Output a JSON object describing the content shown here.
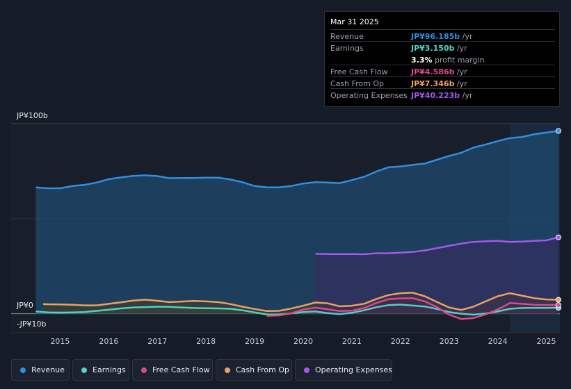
{
  "chart_data": {
    "type": "area",
    "y_axis": {
      "top_label": "JP¥100b",
      "zero_label": "JP¥0",
      "bottom_label": "-JP¥10b",
      "ylim": [
        -10,
        100
      ]
    },
    "x_ticks": [
      "2015",
      "2016",
      "2017",
      "2018",
      "2019",
      "2020",
      "2021",
      "2022",
      "2023",
      "2024",
      "2025"
    ],
    "x_range": [
      2014.45,
      2025.25
    ],
    "highlight_from": 2024.25,
    "series": [
      {
        "name": "Revenue",
        "key": "revenue",
        "color": "#2f8fe0",
        "fill": "#1f4a6e",
        "points": [
          [
            2014.5,
            66.5
          ],
          [
            2014.75,
            66
          ],
          [
            2015,
            66
          ],
          [
            2015.25,
            67.2
          ],
          [
            2015.5,
            67.8
          ],
          [
            2015.75,
            69
          ],
          [
            2016,
            70.8
          ],
          [
            2016.25,
            71.7
          ],
          [
            2016.5,
            72.5
          ],
          [
            2016.75,
            72.8
          ],
          [
            2017,
            72.4
          ],
          [
            2017.25,
            71.3
          ],
          [
            2017.5,
            71.4
          ],
          [
            2017.75,
            71.4
          ],
          [
            2018,
            71.6
          ],
          [
            2018.25,
            71.6
          ],
          [
            2018.5,
            70.6
          ],
          [
            2018.75,
            69.2
          ],
          [
            2019,
            67.2
          ],
          [
            2019.25,
            66.5
          ],
          [
            2019.5,
            66.5
          ],
          [
            2019.75,
            67.2
          ],
          [
            2020,
            68.5
          ],
          [
            2020.25,
            69.2
          ],
          [
            2020.5,
            69
          ],
          [
            2020.75,
            68.7
          ],
          [
            2021,
            70.3
          ],
          [
            2021.25,
            72
          ],
          [
            2021.5,
            74.8
          ],
          [
            2021.75,
            77
          ],
          [
            2022,
            77.5
          ],
          [
            2022.25,
            78.3
          ],
          [
            2022.5,
            79
          ],
          [
            2022.75,
            81
          ],
          [
            2023,
            83
          ],
          [
            2023.25,
            84.7
          ],
          [
            2023.5,
            87.4
          ],
          [
            2023.75,
            89
          ],
          [
            2024,
            90.8
          ],
          [
            2024.25,
            92.4
          ],
          [
            2024.5,
            93
          ],
          [
            2024.75,
            94.4
          ],
          [
            2025,
            95.3
          ],
          [
            2025.25,
            96.185
          ]
        ]
      },
      {
        "name": "Earnings",
        "key": "earnings",
        "color": "#4fd1c5",
        "fill": "#1d4b4f",
        "points": [
          [
            2014.5,
            1.2
          ],
          [
            2014.75,
            0.7
          ],
          [
            2015,
            0.6
          ],
          [
            2015.25,
            0.7
          ],
          [
            2015.5,
            0.9
          ],
          [
            2015.75,
            1.5
          ],
          [
            2016,
            2.1
          ],
          [
            2016.25,
            2.8
          ],
          [
            2016.5,
            3.3
          ],
          [
            2016.75,
            3.5
          ],
          [
            2017,
            3.7
          ],
          [
            2017.25,
            3.6
          ],
          [
            2017.5,
            3.3
          ],
          [
            2017.75,
            3
          ],
          [
            2018,
            2.9
          ],
          [
            2018.25,
            2.8
          ],
          [
            2018.5,
            2.6
          ],
          [
            2018.75,
            1.8
          ],
          [
            2019,
            0.7
          ],
          [
            2019.25,
            -0.4
          ],
          [
            2019.5,
            -0.4
          ],
          [
            2019.75,
            0.2
          ],
          [
            2020,
            0.9
          ],
          [
            2020.25,
            1.2
          ],
          [
            2020.5,
            0.3
          ],
          [
            2020.75,
            -0.2
          ],
          [
            2021,
            0.5
          ],
          [
            2021.25,
            1.8
          ],
          [
            2021.5,
            3.4
          ],
          [
            2021.75,
            4.5
          ],
          [
            2022,
            4.8
          ],
          [
            2022.25,
            4.3
          ],
          [
            2022.5,
            3.8
          ],
          [
            2022.75,
            2.5
          ],
          [
            2023,
            0.9
          ],
          [
            2023.25,
            0
          ],
          [
            2023.5,
            -0.5
          ],
          [
            2023.75,
            0.1
          ],
          [
            2024,
            1.2
          ],
          [
            2024.25,
            2.6
          ],
          [
            2024.5,
            3
          ],
          [
            2024.75,
            3.1
          ],
          [
            2025,
            3.1
          ],
          [
            2025.25,
            3.15
          ]
        ]
      },
      {
        "name": "Free Cash Flow",
        "key": "fcf",
        "color": "#d94a8c",
        "fill": "#4a1f3a",
        "points": [
          [
            2019.25,
            -1.1
          ],
          [
            2019.5,
            -0.9
          ],
          [
            2019.75,
            0.2
          ],
          [
            2020,
            2.2
          ],
          [
            2020.25,
            3.2
          ],
          [
            2020.5,
            2.4
          ],
          [
            2020.75,
            1.4
          ],
          [
            2021,
            1.6
          ],
          [
            2021.25,
            3
          ],
          [
            2021.5,
            5.6
          ],
          [
            2021.75,
            7.6
          ],
          [
            2022,
            8.1
          ],
          [
            2022.25,
            8.2
          ],
          [
            2022.5,
            6.5
          ],
          [
            2022.75,
            3.5
          ],
          [
            2023,
            -0.5
          ],
          [
            2023.25,
            -2.8
          ],
          [
            2023.5,
            -2.3
          ],
          [
            2023.75,
            -0.4
          ],
          [
            2024,
            2.2
          ],
          [
            2024.25,
            5.6
          ],
          [
            2024.5,
            5.2
          ],
          [
            2024.75,
            4.7
          ],
          [
            2025,
            4.6
          ],
          [
            2025.25,
            4.586
          ]
        ]
      },
      {
        "name": "Cash From Op",
        "key": "cfo",
        "color": "#e9a25f",
        "fill": "#4a3a22",
        "points": [
          [
            2014.65,
            5.1
          ],
          [
            2014.75,
            5
          ],
          [
            2015,
            4.9
          ],
          [
            2015.25,
            4.7
          ],
          [
            2015.5,
            4.4
          ],
          [
            2015.75,
            4.4
          ],
          [
            2016,
            5.2
          ],
          [
            2016.25,
            6
          ],
          [
            2016.5,
            6.9
          ],
          [
            2016.75,
            7.4
          ],
          [
            2017,
            6.8
          ],
          [
            2017.25,
            6.1
          ],
          [
            2017.5,
            6.4
          ],
          [
            2017.75,
            6.7
          ],
          [
            2018,
            6.5
          ],
          [
            2018.25,
            6.1
          ],
          [
            2018.5,
            5.1
          ],
          [
            2018.75,
            3.7
          ],
          [
            2019,
            2.5
          ],
          [
            2019.25,
            1.4
          ],
          [
            2019.5,
            1.5
          ],
          [
            2019.75,
            2.7
          ],
          [
            2020,
            4.2
          ],
          [
            2020.25,
            5.9
          ],
          [
            2020.5,
            5.5
          ],
          [
            2020.75,
            3.9
          ],
          [
            2021,
            4.2
          ],
          [
            2021.25,
            5.2
          ],
          [
            2021.5,
            7.7
          ],
          [
            2021.75,
            9.8
          ],
          [
            2022,
            10.8
          ],
          [
            2022.25,
            11.1
          ],
          [
            2022.5,
            9.2
          ],
          [
            2022.75,
            6.2
          ],
          [
            2023,
            3.3
          ],
          [
            2023.25,
            2
          ],
          [
            2023.5,
            3.7
          ],
          [
            2023.75,
            6.5
          ],
          [
            2024,
            9.2
          ],
          [
            2024.25,
            10.8
          ],
          [
            2024.5,
            9.5
          ],
          [
            2024.75,
            8.2
          ],
          [
            2025,
            7.5
          ],
          [
            2025.25,
            7.346
          ]
        ]
      },
      {
        "name": "Operating Expenses",
        "key": "opex",
        "color": "#a259ec",
        "fill": "#3b2860",
        "points": [
          [
            2020.25,
            31.5
          ],
          [
            2020.5,
            31.4
          ],
          [
            2020.75,
            31.4
          ],
          [
            2021,
            31.4
          ],
          [
            2021.25,
            31.3
          ],
          [
            2021.5,
            31.8
          ],
          [
            2021.75,
            31.8
          ],
          [
            2022,
            32.1
          ],
          [
            2022.25,
            32.5
          ],
          [
            2022.5,
            33.3
          ],
          [
            2022.75,
            34.5
          ],
          [
            2023,
            35.7
          ],
          [
            2023.25,
            36.9
          ],
          [
            2023.5,
            37.8
          ],
          [
            2023.75,
            38.1
          ],
          [
            2024,
            38.3
          ],
          [
            2024.25,
            37.8
          ],
          [
            2024.5,
            38
          ],
          [
            2024.75,
            38.3
          ],
          [
            2025,
            38.6
          ],
          [
            2025.25,
            40.223
          ]
        ]
      }
    ]
  },
  "tooltip": {
    "date": "Mar 31 2025",
    "rows": [
      {
        "label": "Revenue",
        "value": "JP¥96.185b",
        "unit": " /yr",
        "color": "#2f8fe0"
      },
      {
        "label": "Earnings",
        "value": "JP¥3.150b",
        "unit": " /yr",
        "color": "#4fd1c5"
      },
      {
        "label": "",
        "value": "3.3%",
        "unit": " profit margin",
        "color": "#ffffff"
      },
      {
        "label": "Free Cash Flow",
        "value": "JP¥4.586b",
        "unit": " /yr",
        "color": "#d94a8c"
      },
      {
        "label": "Cash From Op",
        "value": "JP¥7.346b",
        "unit": " /yr",
        "color": "#e9a25f"
      },
      {
        "label": "Operating Expenses",
        "value": "JP¥40.223b",
        "unit": " /yr",
        "color": "#a259ec"
      }
    ]
  },
  "legend": [
    {
      "label": "Revenue",
      "color": "#2f8fe0"
    },
    {
      "label": "Earnings",
      "color": "#4fd1c5"
    },
    {
      "label": "Free Cash Flow",
      "color": "#d94a8c"
    },
    {
      "label": "Cash From Op",
      "color": "#e9a25f"
    },
    {
      "label": "Operating Expenses",
      "color": "#a259ec"
    }
  ]
}
